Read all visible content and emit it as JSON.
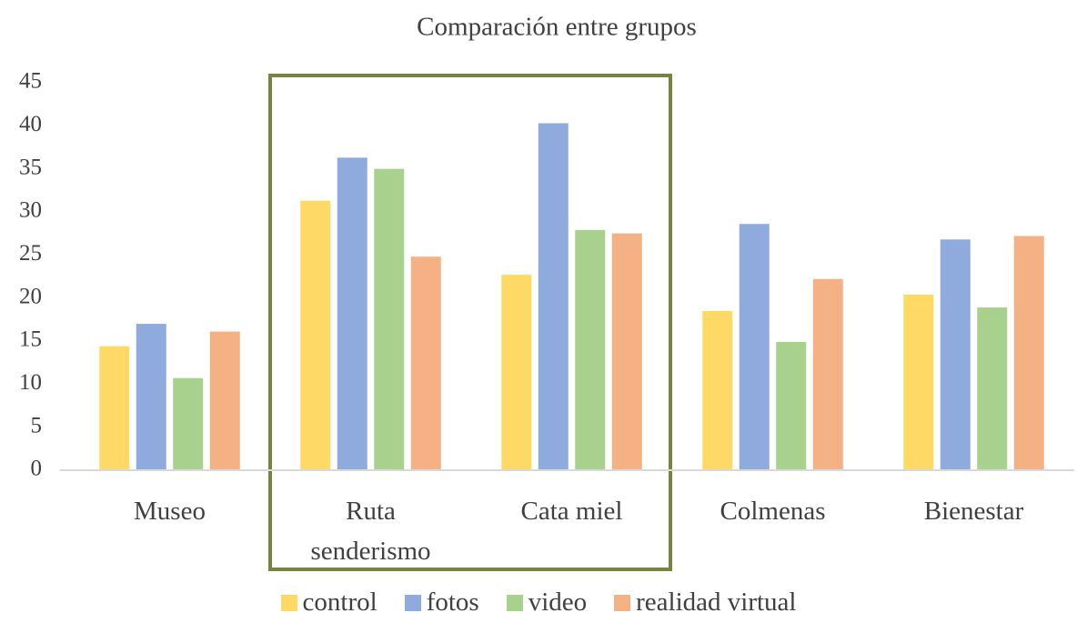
{
  "chart_data": {
    "type": "bar",
    "title": "Comparación entre grupos",
    "categories": [
      "Museo",
      "Ruta senderismo",
      "Cata miel",
      "Colmenas",
      "Bienestar"
    ],
    "series": [
      {
        "name": "control",
        "color": "#ffd966",
        "values": [
          14.4,
          31.3,
          22.7,
          18.5,
          20.4
        ]
      },
      {
        "name": "fotos",
        "color": "#8faadc",
        "values": [
          17.0,
          36.3,
          40.3,
          28.6,
          26.8
        ]
      },
      {
        "name": "video",
        "color": "#a9d18e",
        "values": [
          10.7,
          35.0,
          27.9,
          14.9,
          18.9
        ]
      },
      {
        "name": "realidad virtual",
        "color": "#f4b183",
        "values": [
          16.1,
          24.8,
          27.5,
          22.2,
          27.2
        ]
      }
    ],
    "ylim": [
      0,
      45
    ],
    "yticks": [
      0,
      5,
      10,
      15,
      20,
      25,
      30,
      35,
      40,
      45
    ],
    "grid": false,
    "legend": "bottom"
  }
}
